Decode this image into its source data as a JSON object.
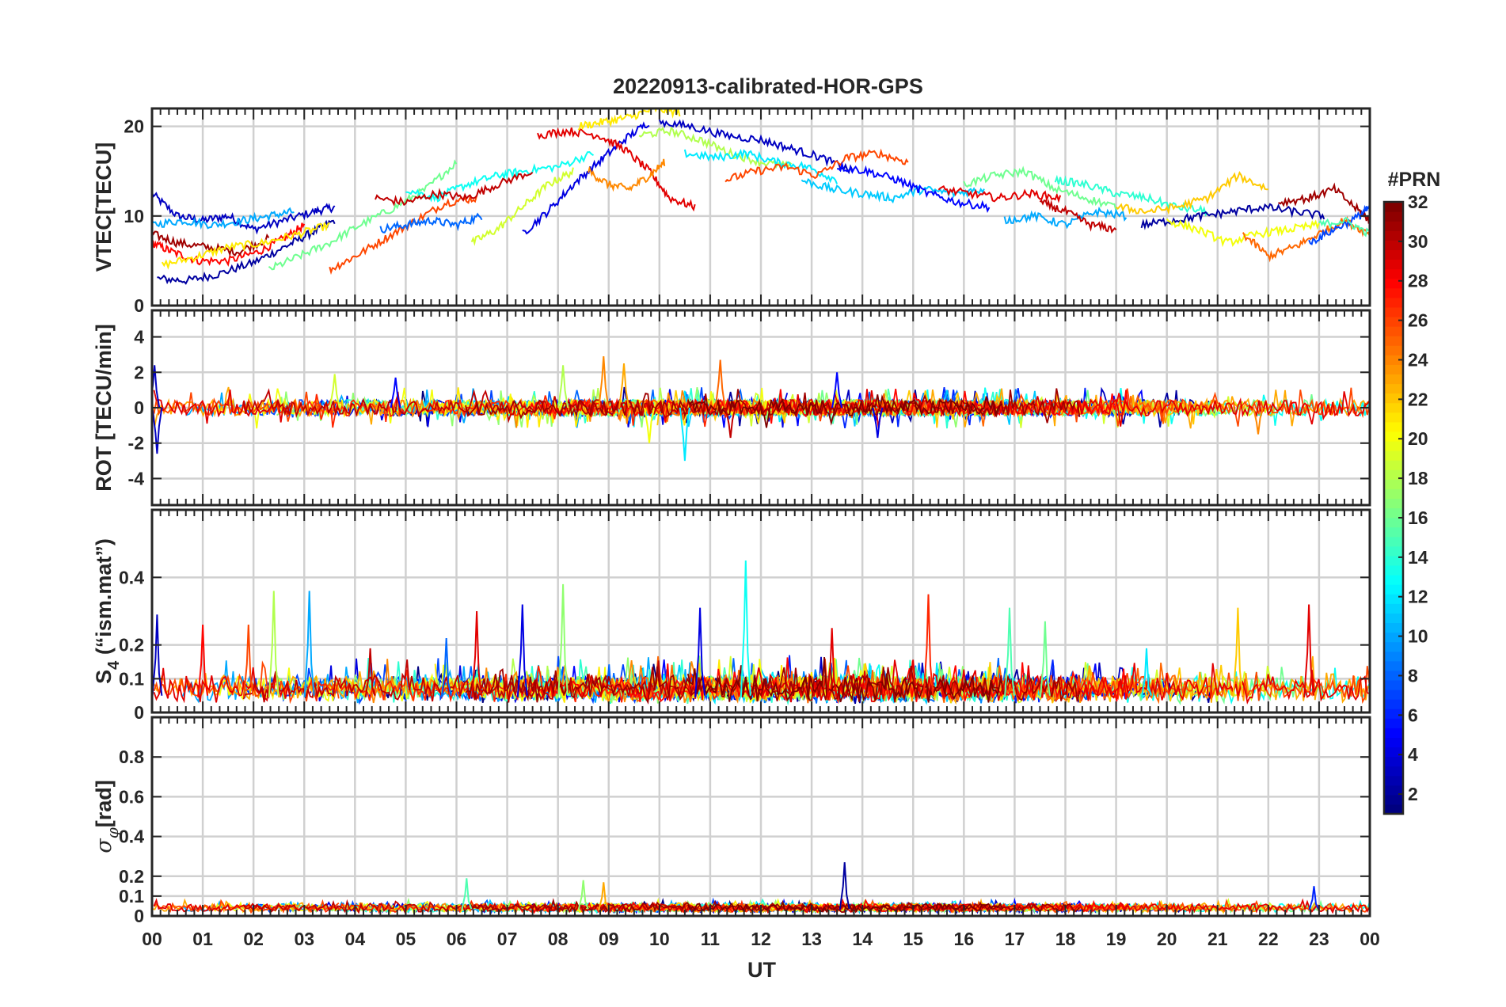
{
  "figure": {
    "title": "20220913-calibrated-HOR-GPS",
    "xlabel": "UT",
    "colorbar_title": "#PRN",
    "colorbar_ticks": [
      "2",
      "4",
      "6",
      "8",
      "10",
      "12",
      "14",
      "16",
      "18",
      "20",
      "22",
      "24",
      "26",
      "28",
      "30",
      "32"
    ]
  },
  "chart_data": [
    {
      "type": "line",
      "title": "20220913-calibrated-HOR-GPS",
      "ylabel": "VTEC[TECU]",
      "ylim": [
        0,
        22
      ],
      "yticks": [
        0,
        10,
        20
      ],
      "xlim": [
        0,
        24
      ],
      "xlabel": "UT",
      "xtick_labels": [
        "00",
        "01",
        "02",
        "03",
        "04",
        "05",
        "06",
        "07",
        "08",
        "09",
        "10",
        "11",
        "12",
        "13",
        "14",
        "15",
        "16",
        "17",
        "18",
        "19",
        "20",
        "21",
        "22",
        "23",
        "00"
      ],
      "grid": true,
      "series_note": "32 GPS satellites (PRN 1-32), colour-coded by colorbar; values approximate",
      "series": [
        {
          "prn": 3,
          "x": [
            0.0,
            0.5,
            1.0,
            1.5,
            2.0,
            2.6,
            3.2,
            3.6
          ],
          "values": [
            12.5,
            10.0,
            9.5,
            10.0,
            8.5,
            9.5,
            10.5,
            11.0
          ]
        },
        {
          "prn": 2,
          "x": [
            0.1,
            0.7,
            1.3,
            2.0,
            2.6,
            3.1,
            3.6
          ],
          "values": [
            3.0,
            2.8,
            3.5,
            4.8,
            6.5,
            8.0,
            9.5
          ]
        },
        {
          "prn": 28,
          "x": [
            0.0,
            0.4,
            0.9,
            1.5,
            2.1,
            2.6,
            3.0
          ],
          "values": [
            7.0,
            6.0,
            5.0,
            5.0,
            6.0,
            7.5,
            9.0
          ]
        },
        {
          "prn": 10,
          "x": [
            0.0,
            0.6,
            1.2,
            1.8,
            2.3,
            2.8
          ],
          "values": [
            9.0,
            9.5,
            9.0,
            9.5,
            10.0,
            10.5
          ]
        },
        {
          "prn": 31,
          "x": [
            0.0,
            0.5,
            1.1,
            1.7,
            2.3
          ],
          "values": [
            8.0,
            7.0,
            6.5,
            6.0,
            7.5
          ]
        },
        {
          "prn": 21,
          "x": [
            0.2,
            0.9,
            1.5,
            2.2,
            2.9,
            3.5
          ],
          "values": [
            4.5,
            5.5,
            6.5,
            7.0,
            8.0,
            9.0
          ]
        },
        {
          "prn": 16,
          "x": [
            2.3,
            2.9,
            3.5,
            4.1,
            4.8,
            5.4,
            6.0
          ],
          "values": [
            4.0,
            5.5,
            7.0,
            9.0,
            11.0,
            13.0,
            16.0
          ]
        },
        {
          "prn": 26,
          "x": [
            3.5,
            4.0,
            4.6,
            5.2,
            5.8,
            6.4
          ],
          "values": [
            4.0,
            5.5,
            7.5,
            9.5,
            11.5,
            12.0
          ]
        },
        {
          "prn": 8,
          "x": [
            4.5,
            5.0,
            5.5,
            6.0,
            6.5
          ],
          "values": [
            8.5,
            9.0,
            9.5,
            9.0,
            10.0
          ]
        },
        {
          "prn": 13,
          "x": [
            5.0,
            5.6,
            6.2,
            6.8,
            7.3,
            8.0,
            8.7
          ],
          "values": [
            13.0,
            12.0,
            13.5,
            14.5,
            15.0,
            15.5,
            17.0
          ]
        },
        {
          "prn": 30,
          "x": [
            4.4,
            5.0,
            5.6,
            6.2,
            6.8,
            7.5
          ],
          "values": [
            12.0,
            11.5,
            12.5,
            12.0,
            13.5,
            15.0
          ]
        },
        {
          "prn": 19,
          "x": [
            6.3,
            6.8,
            7.3,
            7.8,
            8.3
          ],
          "values": [
            7.0,
            8.5,
            11.0,
            13.5,
            15.0
          ]
        },
        {
          "prn": 4,
          "x": [
            7.3,
            7.8,
            8.3,
            8.8,
            9.3,
            9.8
          ],
          "values": [
            8.0,
            10.5,
            13.5,
            16.0,
            18.5,
            20.5
          ]
        },
        {
          "prn": 29,
          "x": [
            7.6,
            8.2,
            8.8,
            9.3,
            9.8,
            10.2,
            10.7
          ],
          "values": [
            19.0,
            19.5,
            19.0,
            17.5,
            15.0,
            12.0,
            11.0
          ]
        },
        {
          "prn": 21,
          "x": [
            8.4,
            8.9,
            9.4,
            9.9,
            10.4
          ],
          "values": [
            20.0,
            20.5,
            21.0,
            22.0,
            21.5
          ]
        },
        {
          "prn": 24,
          "x": [
            8.6,
            9.0,
            9.4,
            9.8,
            10.1
          ],
          "values": [
            15.0,
            13.5,
            13.0,
            14.5,
            16.0
          ]
        },
        {
          "prn": 3,
          "x": [
            10.0,
            10.6,
            11.3,
            12.0,
            12.6,
            13.2,
            13.8
          ],
          "values": [
            20.5,
            20.0,
            19.0,
            18.5,
            17.5,
            16.5,
            15.0
          ]
        },
        {
          "prn": 18,
          "x": [
            9.6,
            10.2,
            10.8,
            11.4,
            12.0,
            12.6
          ],
          "values": [
            19.0,
            19.5,
            18.5,
            17.0,
            16.0,
            15.5
          ]
        },
        {
          "prn": 12,
          "x": [
            10.5,
            11.1,
            11.7,
            12.3,
            12.9,
            13.5
          ],
          "values": [
            17.0,
            16.5,
            17.0,
            16.0,
            15.5,
            14.0
          ]
        },
        {
          "prn": 26,
          "x": [
            11.3,
            11.9,
            12.5,
            13.1,
            13.7,
            14.3,
            14.9
          ],
          "values": [
            14.0,
            15.0,
            15.5,
            14.5,
            16.5,
            17.0,
            16.0
          ]
        },
        {
          "prn": 11,
          "x": [
            12.8,
            13.4,
            14.0,
            14.6,
            15.2,
            15.8,
            16.4
          ],
          "values": [
            14.0,
            13.0,
            12.5,
            12.0,
            13.0,
            12.5,
            13.0
          ]
        },
        {
          "prn": 5,
          "x": [
            13.5,
            14.1,
            14.7,
            15.3,
            15.9,
            16.5
          ],
          "values": [
            15.5,
            15.0,
            14.0,
            12.5,
            11.5,
            11.0
          ]
        },
        {
          "prn": 29,
          "x": [
            15.5,
            16.1,
            16.7,
            17.3,
            17.9
          ],
          "values": [
            13.0,
            12.5,
            12.0,
            12.5,
            12.0
          ]
        },
        {
          "prn": 16,
          "x": [
            16.0,
            16.6,
            17.2,
            17.8,
            18.4,
            19.0
          ],
          "values": [
            13.5,
            14.5,
            15.0,
            13.0,
            12.0,
            11.0
          ]
        },
        {
          "prn": 10,
          "x": [
            16.8,
            17.4,
            18.0,
            18.6,
            19.2
          ],
          "values": [
            9.5,
            10.0,
            9.0,
            10.5,
            10.0
          ]
        },
        {
          "prn": 14,
          "x": [
            17.8,
            18.4,
            19.0,
            19.6,
            20.2,
            20.8
          ],
          "values": [
            14.0,
            13.5,
            12.5,
            12.0,
            11.0,
            10.5
          ]
        },
        {
          "prn": 30,
          "x": [
            17.5,
            18.0,
            18.5,
            19.0
          ],
          "values": [
            11.5,
            10.5,
            9.0,
            8.5
          ]
        },
        {
          "prn": 2,
          "x": [
            19.5,
            20.1,
            20.7,
            21.3,
            21.9,
            22.5,
            23.1
          ],
          "values": [
            9.0,
            9.5,
            10.0,
            10.5,
            11.0,
            10.5,
            10.0
          ]
        },
        {
          "prn": 22,
          "x": [
            19.0,
            19.6,
            20.2,
            20.8,
            21.4,
            22.0
          ],
          "values": [
            11.0,
            10.5,
            11.0,
            12.0,
            14.5,
            13.0
          ]
        },
        {
          "prn": 20,
          "x": [
            20.0,
            20.6,
            21.2,
            21.8,
            22.4,
            23.0
          ],
          "values": [
            9.5,
            8.5,
            7.0,
            8.0,
            8.5,
            9.0
          ]
        },
        {
          "prn": 25,
          "x": [
            21.5,
            22.0,
            22.5,
            23.0,
            23.5,
            24.0
          ],
          "values": [
            8.0,
            5.5,
            6.5,
            8.0,
            9.5,
            8.0
          ]
        },
        {
          "prn": 31,
          "x": [
            22.2,
            22.8,
            23.3,
            23.8,
            24.0
          ],
          "values": [
            11.5,
            12.0,
            13.0,
            10.5,
            9.5
          ]
        },
        {
          "prn": 7,
          "x": [
            22.8,
            23.3,
            23.8,
            24.0
          ],
          "values": [
            7.0,
            8.5,
            10.0,
            11.0
          ]
        },
        {
          "prn": 15,
          "x": [
            23.0,
            23.5,
            24.0
          ],
          "values": [
            9.0,
            9.5,
            8.0
          ]
        }
      ]
    },
    {
      "type": "line",
      "ylabel": "ROT [TECU/min]",
      "ylim": [
        -5.5,
        5.5
      ],
      "yticks": [
        -4,
        -2,
        0,
        2,
        4
      ],
      "xlim": [
        0,
        24
      ],
      "grid": true,
      "note": "dense noisy traces for all PRNs around 0, mostly within +/-1 TECU/min",
      "spikes": [
        {
          "x": 0.05,
          "value": 2.4,
          "prn": 3
        },
        {
          "x": 0.1,
          "value": -2.6,
          "prn": 3
        },
        {
          "x": 3.6,
          "value": 1.9,
          "prn": 19
        },
        {
          "x": 4.8,
          "value": 1.7,
          "prn": 5
        },
        {
          "x": 8.1,
          "value": 2.4,
          "prn": 18
        },
        {
          "x": 8.9,
          "value": 2.9,
          "prn": 24
        },
        {
          "x": 9.3,
          "value": 2.5,
          "prn": 23
        },
        {
          "x": 9.8,
          "value": -2.0,
          "prn": 20
        },
        {
          "x": 10.5,
          "value": -3.0,
          "prn": 12
        },
        {
          "x": 11.2,
          "value": 2.7,
          "prn": 25
        },
        {
          "x": 11.4,
          "value": -1.7,
          "prn": 30
        },
        {
          "x": 13.5,
          "value": 2.0,
          "prn": 5
        },
        {
          "x": 14.3,
          "value": -1.7,
          "prn": 4
        },
        {
          "x": 21.8,
          "value": -1.5,
          "prn": 24
        }
      ]
    },
    {
      "type": "line",
      "ylabel": "S4 (\"ism.mat\")",
      "ylim": [
        0,
        0.6
      ],
      "yticks": [
        0,
        0.1,
        0.2,
        0.4
      ],
      "xlim": [
        0,
        24
      ],
      "grid": true,
      "note": "baseline 0.02-0.1 for all PRNs with frequent spikes",
      "spikes": [
        {
          "x": 0.1,
          "value": 0.29,
          "prn": 3
        },
        {
          "x": 1.0,
          "value": 0.26,
          "prn": 28
        },
        {
          "x": 1.9,
          "value": 0.26,
          "prn": 26
        },
        {
          "x": 2.4,
          "value": 0.36,
          "prn": 18
        },
        {
          "x": 3.1,
          "value": 0.36,
          "prn": 10
        },
        {
          "x": 4.3,
          "value": 0.19,
          "prn": 30
        },
        {
          "x": 5.8,
          "value": 0.22,
          "prn": 8
        },
        {
          "x": 6.4,
          "value": 0.3,
          "prn": 29
        },
        {
          "x": 7.3,
          "value": 0.32,
          "prn": 4
        },
        {
          "x": 8.1,
          "value": 0.38,
          "prn": 17
        },
        {
          "x": 10.8,
          "value": 0.31,
          "prn": 4
        },
        {
          "x": 11.7,
          "value": 0.45,
          "prn": 13
        },
        {
          "x": 13.4,
          "value": 0.25,
          "prn": 29
        },
        {
          "x": 15.3,
          "value": 0.35,
          "prn": 27
        },
        {
          "x": 16.9,
          "value": 0.31,
          "prn": 15
        },
        {
          "x": 17.6,
          "value": 0.27,
          "prn": 16
        },
        {
          "x": 19.6,
          "value": 0.19,
          "prn": 12
        },
        {
          "x": 21.4,
          "value": 0.31,
          "prn": 22
        },
        {
          "x": 22.8,
          "value": 0.32,
          "prn": 29
        }
      ]
    },
    {
      "type": "line",
      "ylabel": "σφ[rad]",
      "ylim": [
        0,
        1.0
      ],
      "yticks": [
        0,
        0.1,
        0.2,
        0.4,
        0.6,
        0.8
      ],
      "xlim": [
        0,
        24
      ],
      "grid": true,
      "note": "values mostly 0.02-0.06 for all PRNs",
      "spikes": [
        {
          "x": 6.2,
          "value": 0.19,
          "prn": 15
        },
        {
          "x": 8.5,
          "value": 0.18,
          "prn": 17
        },
        {
          "x": 8.9,
          "value": 0.17,
          "prn": 23
        },
        {
          "x": 13.65,
          "value": 0.27,
          "prn": 2
        },
        {
          "x": 22.9,
          "value": 0.15,
          "prn": 6
        }
      ]
    }
  ]
}
